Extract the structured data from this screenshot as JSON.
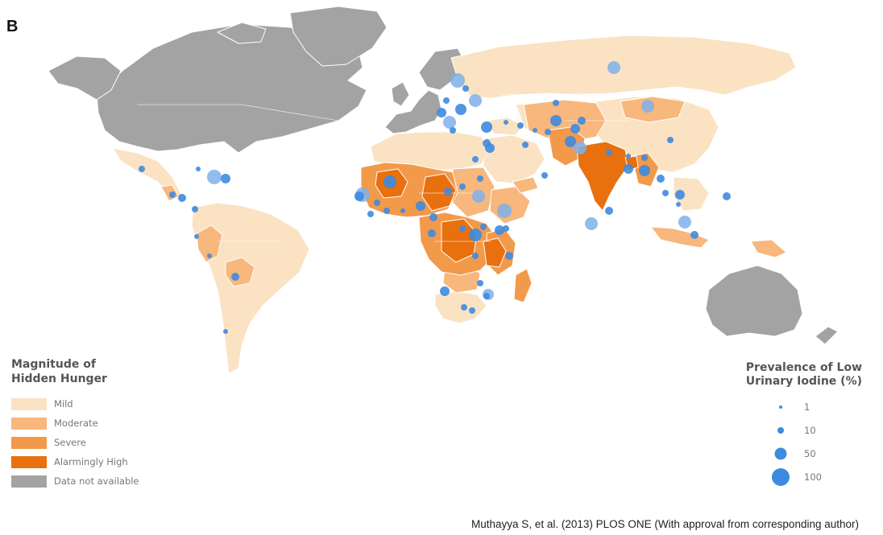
{
  "figure": {
    "panel_label": "B",
    "citation": "Muthayya S, et al. (2013) PLOS ONE (With approval from corresponding author)"
  },
  "legend_hunger": {
    "title_line1": "Magnitude of",
    "title_line2": "Hidden Hunger",
    "items": [
      {
        "label": "Mild",
        "color": "#fbe2c3"
      },
      {
        "label": "Moderate",
        "color": "#f8b77c"
      },
      {
        "label": "Severe",
        "color": "#f3994a"
      },
      {
        "label": "Alarmingly High",
        "color": "#e8700f"
      },
      {
        "label": "Data not available",
        "color": "#a3a3a3"
      }
    ]
  },
  "legend_iodine": {
    "title_line1": "Prevalence of Low",
    "title_line2": "Urinary Iodine (%)",
    "items": [
      {
        "label": "1",
        "value": 1
      },
      {
        "label": "10",
        "value": 10
      },
      {
        "label": "50",
        "value": 50
      },
      {
        "label": "100",
        "value": 100
      }
    ]
  },
  "colors": {
    "mild": "#fbe2c3",
    "moderate": "#f8b77c",
    "severe": "#f3994a",
    "alarmingly_high": "#e8700f",
    "no_data": "#a3a3a3",
    "bubble": "#3d8be0",
    "bubble_light": "#7fb0ea"
  }
}
